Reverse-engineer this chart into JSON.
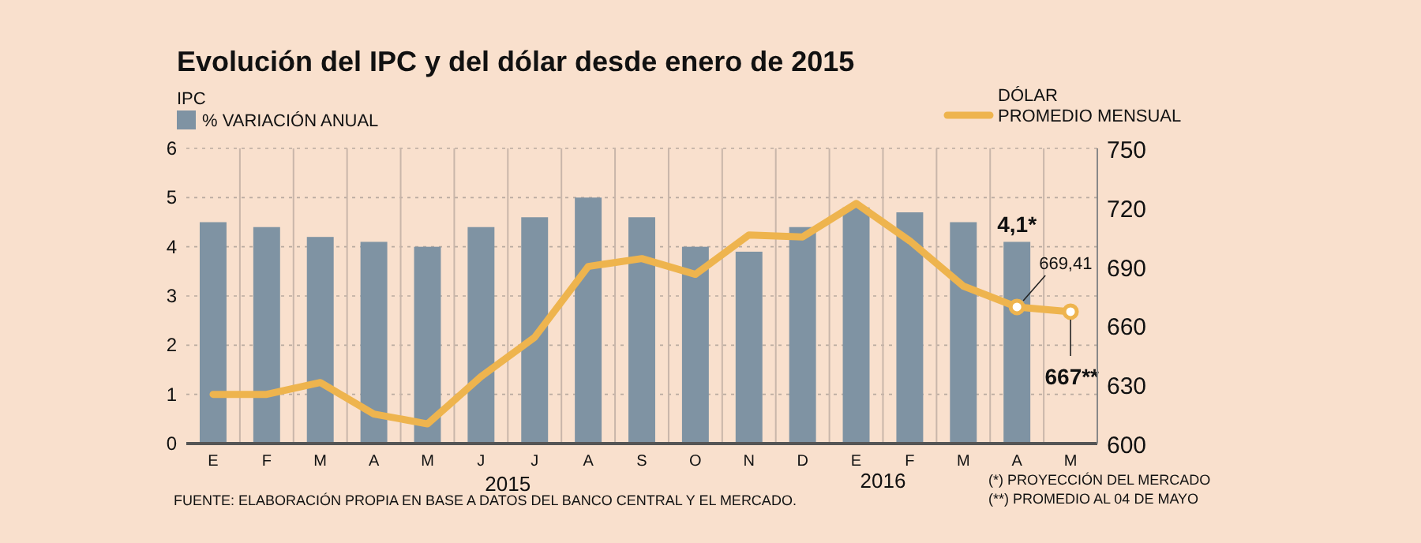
{
  "chart_data": {
    "type": "bar",
    "title": "Evolución del IPC y del dólar desde enero de 2015",
    "categories": [
      "E",
      "F",
      "M",
      "A",
      "M",
      "J",
      "J",
      "A",
      "S",
      "O",
      "N",
      "D",
      "E",
      "F",
      "M",
      "A",
      "M"
    ],
    "series": [
      {
        "name": "% VARIACIÓN ANUAL",
        "color": "#7f93a3",
        "values": [
          4.5,
          4.4,
          4.2,
          4.1,
          4.0,
          4.4,
          4.6,
          5.0,
          4.6,
          4.0,
          3.9,
          4.4,
          4.8,
          4.7,
          4.5,
          4.1,
          null
        ],
        "value_labels": [
          null,
          null,
          null,
          null,
          null,
          null,
          null,
          null,
          null,
          null,
          null,
          null,
          null,
          null,
          null,
          "4,1*",
          null
        ]
      },
      {
        "name": "PROMEDIO MENSUAL",
        "type": "line",
        "axis": "y2",
        "color": "#eeb44e",
        "values": [
          625,
          625,
          631,
          615,
          610,
          634,
          654,
          690,
          694,
          686,
          706,
          705,
          722,
          703,
          680,
          669.41,
          667
        ],
        "value_labels": [
          null,
          null,
          null,
          null,
          null,
          null,
          null,
          null,
          null,
          null,
          null,
          null,
          null,
          null,
          null,
          "669,41",
          "667**"
        ]
      }
    ],
    "ylim": [
      0,
      6
    ],
    "yticks": [
      0,
      1,
      2,
      3,
      4,
      5,
      6
    ],
    "y2lim": [
      600,
      750
    ],
    "y2ticks": [
      600,
      630,
      660,
      690,
      720,
      750
    ],
    "grid": true,
    "legend": "top",
    "annotations": [
      "IPC",
      "DÓLAR",
      "2015",
      "2016",
      "(*) PROYECCIÓN DEL MERCADO",
      "(**) PROMEDIO AL 04 DE MAYO",
      "FUENTE: ELABORACIÓN PROPIA EN BASE A DATOS DEL BANCO CENTRAL Y EL MERCADO."
    ]
  }
}
